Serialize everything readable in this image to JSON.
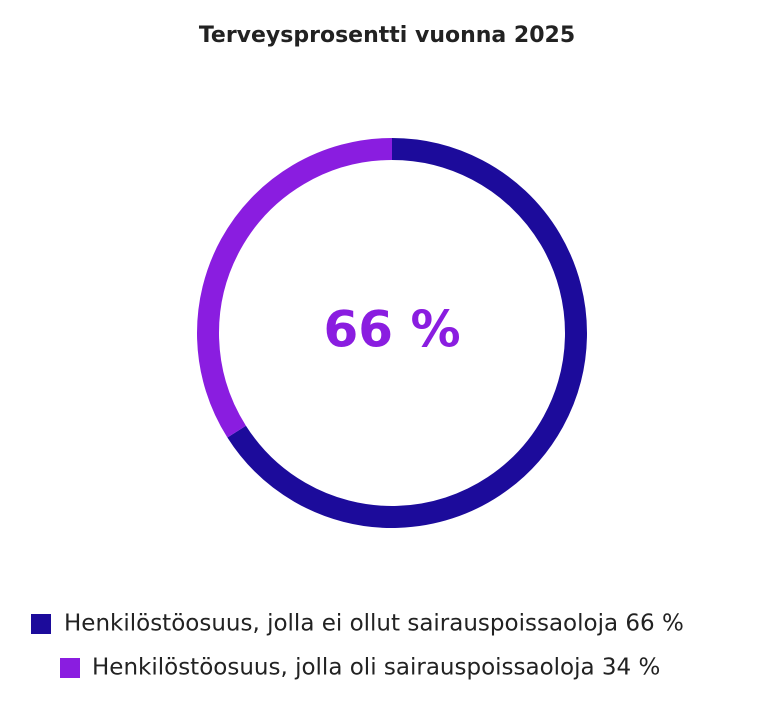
{
  "chart_data": {
    "type": "donut",
    "title": "Terveysprosentti vuonna 2025",
    "center_label": "66 %",
    "categories": [
      "Henkilöstöosuus, jolla ei ollut sairauspoissaoloja 66 %",
      "Henkilöstöosuus, jolla oli sairauspoissaoloja 34 %"
    ],
    "values": [
      66,
      34
    ],
    "colors": [
      "#1c0b9b",
      "#8a1de0"
    ]
  }
}
